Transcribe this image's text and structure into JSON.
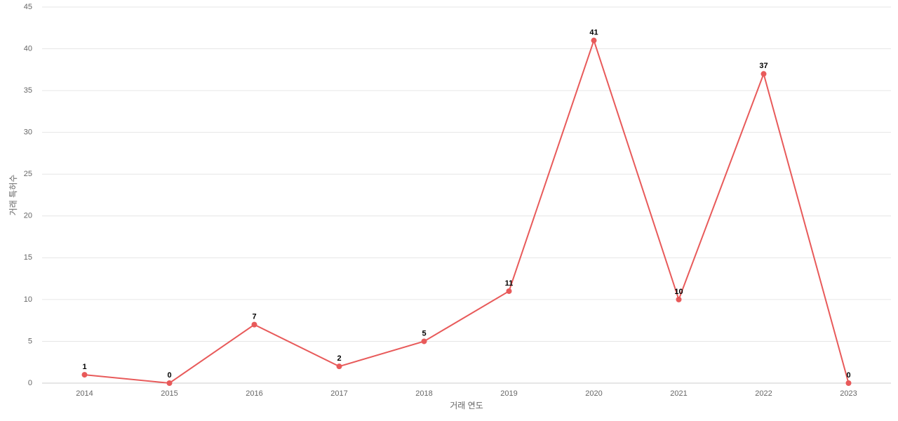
{
  "chart_data": {
    "type": "line",
    "x_label": "거래 연도",
    "y_label": "거래 특허수",
    "categories": [
      "2014",
      "2015",
      "2016",
      "2017",
      "2018",
      "2019",
      "2020",
      "2021",
      "2022",
      "2023"
    ],
    "values": [
      1,
      0,
      7,
      2,
      5,
      11,
      41,
      10,
      37,
      0
    ],
    "color": "#e85a5a",
    "ylim": [
      0,
      45
    ],
    "yticks": [
      0,
      5,
      10,
      15,
      20,
      25,
      30,
      35,
      40,
      45
    ],
    "grid": true
  }
}
